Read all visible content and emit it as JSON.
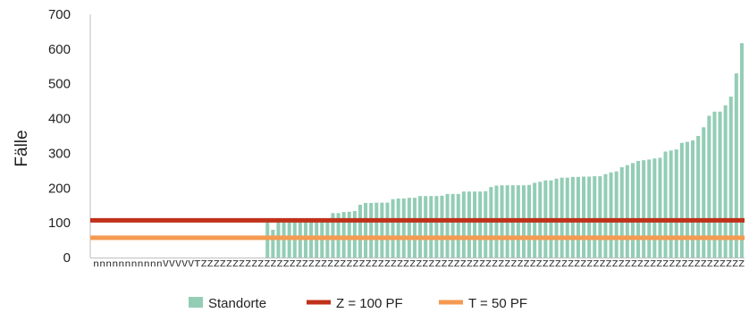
{
  "chart_data": {
    "type": "bar",
    "ylabel": "Fälle",
    "xlabel": "",
    "ylim": [
      0,
      700
    ],
    "yticks": [
      0,
      100,
      200,
      300,
      400,
      500,
      600,
      700
    ],
    "grid": false,
    "legend_position": "bottom",
    "category_labels": "nnnnnnnnnnnVVVVVTZZZZZZZZZZZZZZZZZZZZZZZZZZZZZZZZZZZZZZZZZZZZZZZZZZZZZZZZZZZZZZZZZZZZZZZZZZZZZZZZZZZZZZ",
    "series": [
      {
        "name": "Standorte",
        "kind": "bar",
        "color": "#93cdb5",
        "values": [
          0,
          0,
          0,
          0,
          0,
          0,
          0,
          0,
          0,
          0,
          0,
          0,
          0,
          0,
          0,
          0,
          0,
          0,
          0,
          0,
          0,
          0,
          0,
          0,
          0,
          0,
          0,
          0,
          0,
          0,
          0,
          0,
          105,
          80,
          108,
          108,
          108,
          108,
          109,
          109,
          110,
          110,
          110,
          110,
          128,
          128,
          131,
          132,
          134,
          152,
          157,
          157,
          158,
          158,
          158,
          168,
          170,
          170,
          172,
          172,
          177,
          177,
          177,
          177,
          178,
          183,
          183,
          183,
          190,
          190,
          190,
          190,
          191,
          203,
          207,
          208,
          208,
          208,
          208,
          208,
          209,
          215,
          218,
          222,
          222,
          227,
          230,
          230,
          232,
          232,
          233,
          233,
          234,
          234,
          240,
          245,
          248,
          260,
          266,
          272,
          278,
          280,
          282,
          285,
          287,
          305,
          308,
          311,
          330,
          333,
          337,
          350,
          375,
          408,
          420,
          420,
          438,
          463,
          530,
          617
        ]
      },
      {
        "name": "Z = 100 PF",
        "kind": "line",
        "color": "#c0311b",
        "value": 107
      },
      {
        "name": "T = 50 PF",
        "kind": "line",
        "color": "#f49a52",
        "value": 57
      }
    ]
  }
}
